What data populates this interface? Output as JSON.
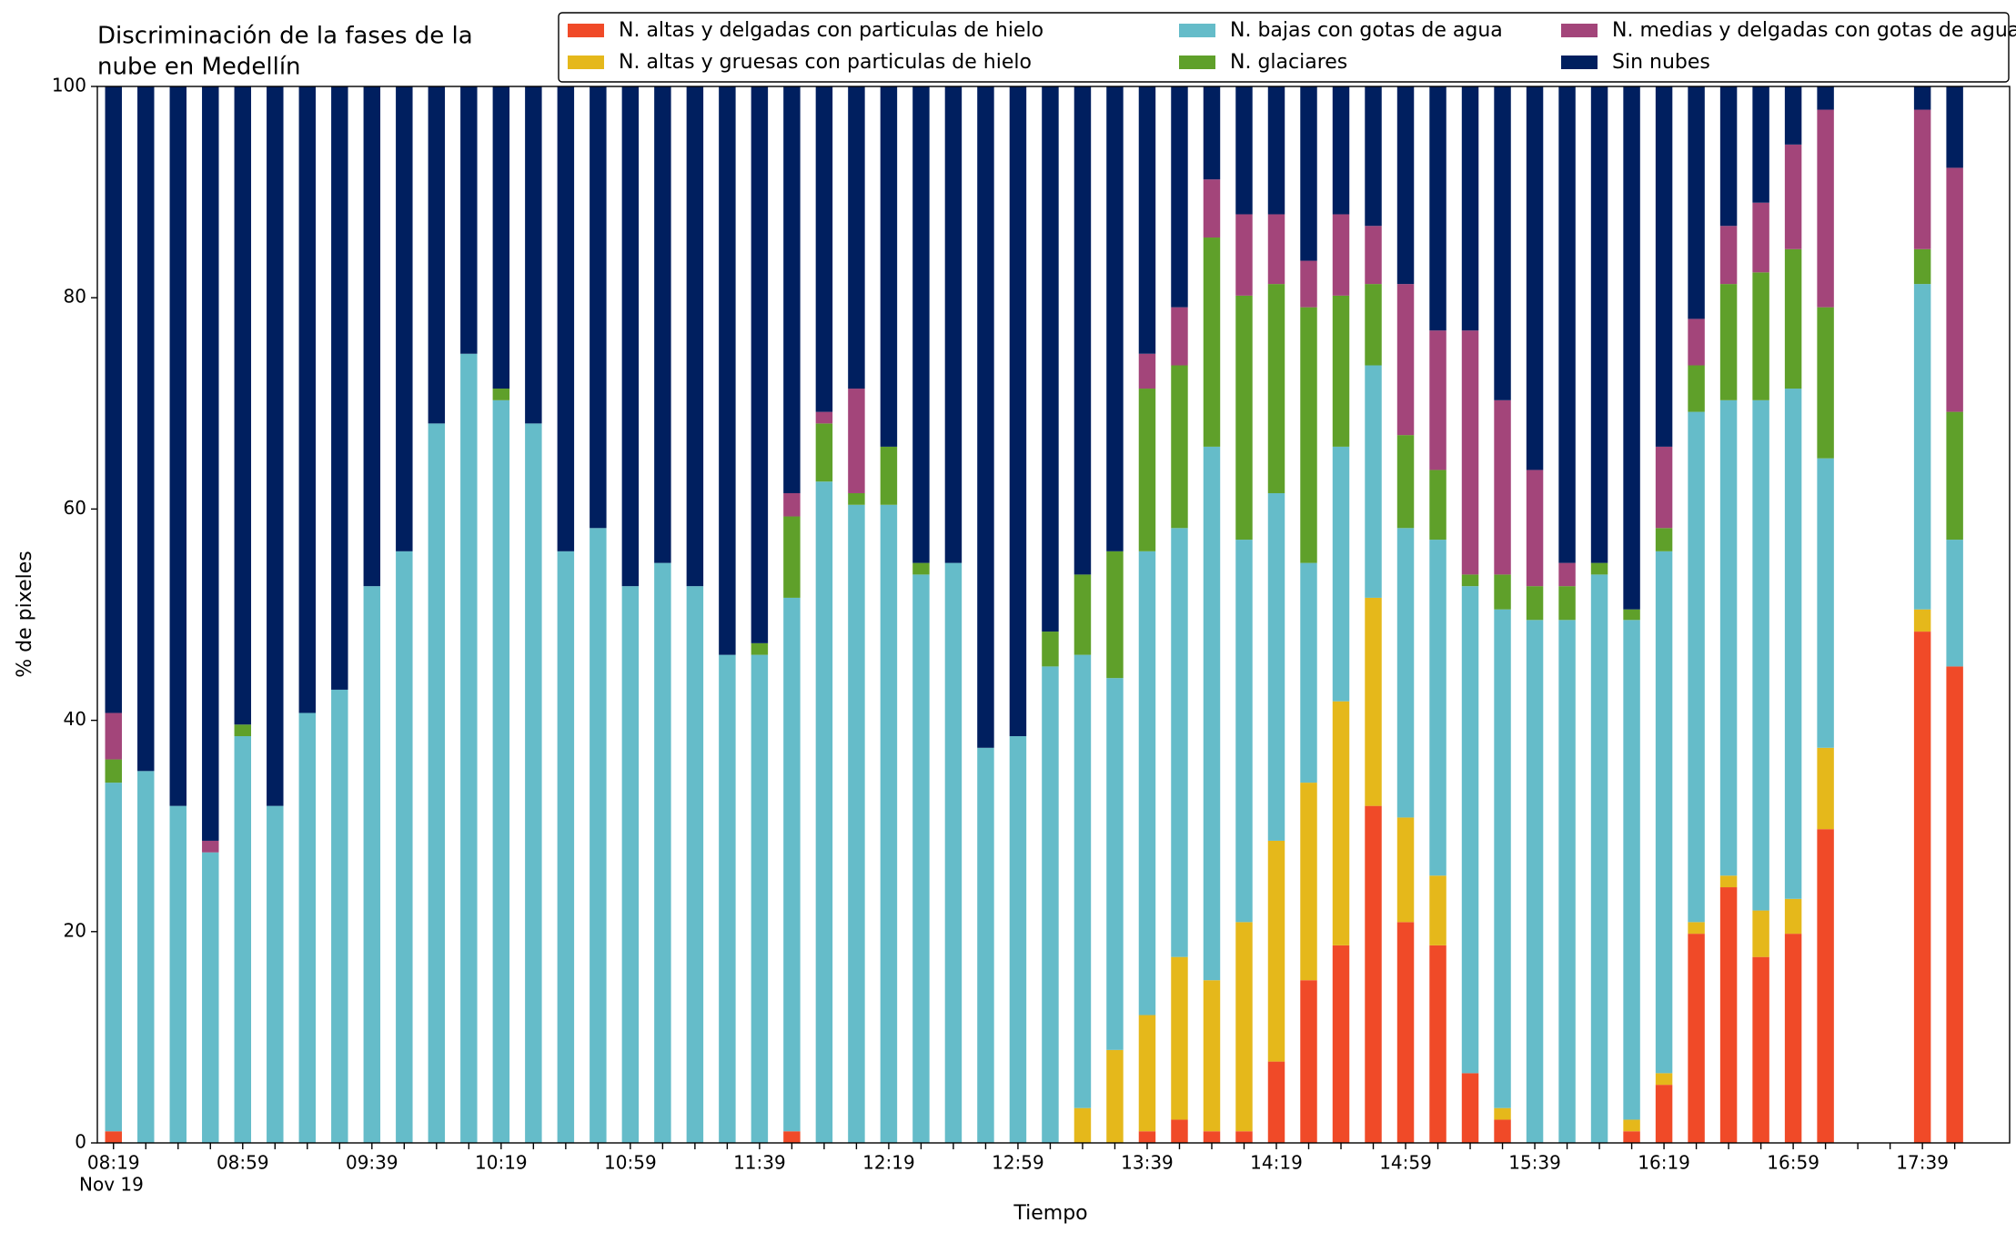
{
  "chart_data": {
    "type": "stacked_bar",
    "title": [
      "Discriminación de la fases de la",
      "nube en Medellín"
    ],
    "x_label": "Tiempo",
    "y_label": "% de pixeles",
    "x_date": "Nov 19",
    "categories": [
      "08:19",
      null,
      null,
      null,
      "08:59",
      null,
      null,
      null,
      "09:39",
      null,
      null,
      null,
      "10:19",
      null,
      null,
      null,
      "10:59",
      null,
      null,
      null,
      "11:39",
      null,
      null,
      null,
      "12:19",
      null,
      null,
      null,
      "12:59",
      null,
      null,
      null,
      "13:39",
      null,
      null,
      null,
      "14:19",
      null,
      null,
      null,
      "14:59",
      null,
      null,
      null,
      "15:39",
      null,
      null,
      null,
      "16:19",
      null,
      null,
      null,
      "16:59",
      null,
      null,
      null,
      "17:39",
      null
    ],
    "ylim": [
      0,
      100
    ],
    "yticks": [
      0,
      20,
      40,
      60,
      80,
      100
    ],
    "legend": "top-right",
    "series": [
      {
        "name": "N. altas y delgadas con particulas de hielo",
        "color": "#f04a28",
        "values": [
          1.1,
          0,
          0,
          0,
          0,
          0,
          0,
          0,
          0,
          0,
          0,
          0,
          0,
          0,
          0,
          0,
          0,
          0,
          0,
          0,
          0,
          1.1,
          0,
          0,
          0,
          0,
          0,
          0,
          0,
          0,
          0,
          0,
          1.1,
          2.2,
          1.1,
          1.1,
          7.7,
          15.4,
          18.7,
          31.9,
          20.9,
          18.7,
          6.6,
          2.2,
          0,
          0,
          0,
          1.1,
          5.5,
          19.8,
          24.2,
          17.6,
          19.8,
          29.7,
          null,
          null,
          48.4,
          45.1
        ]
      },
      {
        "name": "N. altas y gruesas con particulas de hielo",
        "color": "#e5b81b",
        "values": [
          0,
          0,
          0,
          0,
          0,
          0,
          0,
          0,
          0,
          0,
          0,
          0,
          0,
          0,
          0,
          0,
          0,
          0,
          0,
          0,
          0,
          0,
          0,
          0,
          0,
          0,
          0,
          0,
          0,
          0,
          3.3,
          8.8,
          11.0,
          15.4,
          14.3,
          19.8,
          20.9,
          18.7,
          23.1,
          19.7,
          9.9,
          6.6,
          0,
          1.1,
          0,
          0,
          0,
          1.1,
          1.1,
          1.1,
          1.1,
          4.4,
          3.3,
          7.7,
          null,
          null,
          2.1,
          0
        ]
      },
      {
        "name": "N. bajas con gotas de agua",
        "color": "#65bcc9",
        "values": [
          33,
          35.2,
          31.9,
          27.5,
          38.5,
          31.9,
          40.7,
          42.9,
          52.7,
          56.0,
          68.1,
          74.7,
          70.3,
          68.1,
          56.0,
          58.2,
          52.7,
          54.9,
          52.7,
          46.2,
          46.2,
          50.5,
          62.6,
          60.4,
          60.4,
          53.8,
          54.9,
          37.4,
          38.5,
          45.1,
          42.9,
          35.2,
          43.9,
          40.6,
          50.5,
          36.2,
          32.9,
          20.8,
          24.1,
          22.0,
          27.4,
          31.8,
          46.1,
          47.2,
          49.5,
          49.5,
          53.8,
          47.3,
          49.4,
          48.3,
          45.0,
          48.3,
          48.3,
          27.4,
          null,
          null,
          30.8,
          12.0
        ]
      },
      {
        "name": "N. glaciares",
        "color": "#5fa02a",
        "values": [
          2.2,
          0,
          0,
          0,
          1.1,
          0,
          0,
          0,
          0,
          0,
          0,
          0,
          1.1,
          0,
          0,
          0,
          0,
          0,
          0,
          0,
          1.1,
          7.7,
          5.5,
          1.1,
          5.5,
          1.1,
          0,
          0,
          0,
          3.3,
          7.6,
          12.0,
          15.4,
          15.4,
          19.8,
          23.1,
          19.8,
          24.2,
          14.3,
          7.7,
          8.8,
          6.6,
          1.1,
          3.3,
          3.2,
          3.2,
          1.1,
          1.0,
          2.2,
          4.4,
          11.0,
          12.1,
          13.2,
          14.3,
          null,
          null,
          3.3,
          12.1
        ]
      },
      {
        "name": "N. medias y delgadas con gotas de agua",
        "color": "#a3457a",
        "values": [
          4.4,
          0,
          0,
          1.1,
          0,
          0,
          0,
          0,
          0,
          0,
          0,
          0,
          0,
          0,
          0,
          0,
          0,
          0,
          0,
          0,
          0,
          2.2,
          1.1,
          9.9,
          0,
          0,
          0,
          0,
          0,
          0,
          0,
          0,
          3.3,
          5.5,
          5.5,
          7.7,
          6.6,
          4.4,
          7.7,
          5.5,
          14.3,
          13.2,
          23.1,
          16.5,
          11.0,
          2.2,
          0,
          0,
          7.7,
          4.4,
          5.5,
          6.6,
          9.9,
          18.7,
          null,
          null,
          13.2,
          23.1
        ]
      },
      {
        "name": "Sin nubes",
        "color": "#001f5f",
        "values": [
          59.3,
          64.8,
          68.1,
          71.4,
          60.4,
          68.1,
          59.3,
          57.1,
          47.3,
          44.0,
          31.9,
          25.3,
          28.6,
          31.9,
          44.0,
          41.8,
          47.3,
          45.1,
          47.3,
          53.8,
          52.7,
          38.5,
          30.8,
          28.6,
          34.1,
          45.1,
          45.1,
          62.6,
          61.5,
          51.6,
          46.2,
          44.0,
          25.3,
          20.9,
          8.8,
          12.1,
          12.1,
          16.5,
          12.1,
          13.2,
          18.7,
          23.1,
          23.1,
          29.7,
          36.3,
          45.1,
          45.1,
          49.5,
          34.1,
          22.0,
          13.2,
          11.0,
          5.5,
          2.2,
          null,
          null,
          2.2,
          7.7
        ]
      }
    ]
  }
}
